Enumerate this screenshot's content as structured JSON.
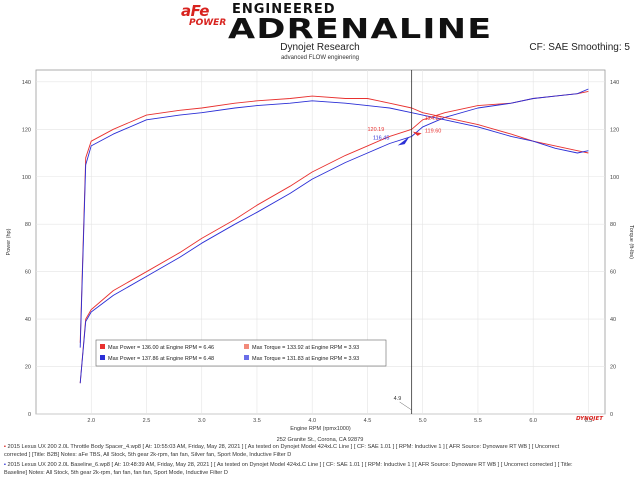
{
  "header": {
    "brand_afe": "aFe",
    "brand_power": "POWER",
    "brand_engineered": "ENGINEERED",
    "brand_adrenaline": "ADRENALINE",
    "title": "Dynojet Research",
    "subtitle": "advanced FLOW engineering",
    "correction": "CF: SAE Smoothing: 5"
  },
  "chart_data": {
    "type": "line",
    "xlabel": "Engine RPM (rpmx1000)",
    "ylabel_left": "Power (hp)",
    "ylabel_right": "Torque (ft-lbs)",
    "xlim": [
      1.5,
      6.65
    ],
    "ylim": [
      0,
      145
    ],
    "x_ticks": [
      "2.0",
      "2.5",
      "3.0",
      "3.5",
      "4.0",
      "4.5",
      "5.0",
      "5.5",
      "6.0",
      "6.5"
    ],
    "y_ticks": [
      "0",
      "20",
      "40",
      "60",
      "80",
      "100",
      "120",
      "140"
    ],
    "cursor_rpm": 4.9,
    "cursor_label": "4.9",
    "series": [
      {
        "name": "afe",
        "kind": "power",
        "color": "#e8312f",
        "x": [
          1.9,
          1.95,
          2.0,
          2.2,
          2.5,
          2.8,
          3.0,
          3.3,
          3.5,
          3.8,
          4.0,
          4.3,
          4.5,
          4.7,
          4.9,
          5.0,
          5.2,
          5.5,
          5.8,
          6.0,
          6.2,
          6.4,
          6.5
        ],
        "y": [
          13,
          40,
          44,
          52,
          60,
          68,
          74,
          82,
          88,
          96,
          102,
          109,
          113,
          117,
          120,
          124,
          127,
          130,
          131,
          133,
          134,
          135,
          136
        ]
      },
      {
        "name": "baseline",
        "kind": "power",
        "color": "#2b2fd6",
        "x": [
          1.9,
          1.95,
          2.0,
          2.2,
          2.5,
          2.8,
          3.0,
          3.3,
          3.5,
          3.8,
          4.0,
          4.3,
          4.5,
          4.7,
          4.9,
          5.0,
          5.2,
          5.5,
          5.8,
          6.0,
          6.2,
          6.4,
          6.5
        ],
        "y": [
          13,
          39,
          43,
          50,
          58,
          66,
          72,
          80,
          85,
          93,
          99,
          106,
          110,
          114,
          117,
          121,
          125,
          129,
          131,
          133,
          134,
          135,
          137
        ]
      },
      {
        "name": "afe",
        "kind": "torque",
        "color": "#e8312f",
        "x": [
          1.9,
          1.95,
          2.0,
          2.2,
          2.5,
          2.8,
          3.0,
          3.3,
          3.5,
          3.8,
          4.0,
          4.3,
          4.5,
          4.7,
          4.9,
          5.0,
          5.2,
          5.5,
          5.8,
          6.0,
          6.2,
          6.4,
          6.5
        ],
        "y": [
          30,
          108,
          115,
          120,
          126,
          128,
          129,
          131,
          132,
          133,
          134,
          133,
          133,
          131,
          129,
          127,
          125,
          122,
          118,
          115,
          113,
          111,
          110
        ]
      },
      {
        "name": "baseline",
        "kind": "torque",
        "color": "#2b2fd6",
        "x": [
          1.9,
          1.95,
          2.0,
          2.2,
          2.5,
          2.8,
          3.0,
          3.3,
          3.5,
          3.8,
          4.0,
          4.3,
          4.5,
          4.7,
          4.9,
          5.0,
          5.2,
          5.5,
          5.8,
          6.0,
          6.2,
          6.4,
          6.5
        ],
        "y": [
          28,
          105,
          113,
          118,
          124,
          126,
          127,
          129,
          130,
          131,
          132,
          131,
          130,
          129,
          127,
          126,
          124,
          121,
          117,
          115,
          112,
          110,
          111
        ]
      }
    ],
    "cursor_labels": [
      {
        "text": "120.19",
        "color": "#e8312f",
        "x": 4.5,
        "y": 120.19
      },
      {
        "text": "124.82",
        "color": "#e8312f",
        "x": 5.02,
        "y": 124.82
      },
      {
        "text": "116.45",
        "color": "#2b2fd6",
        "x": 4.55,
        "y": 116.45
      },
      {
        "text": "119.60",
        "color": "#e8312f",
        "x": 5.02,
        "y": 119.6
      }
    ],
    "legend": {
      "placement": "bottom-left",
      "rows": [
        {
          "color": "#e8312f",
          "power": "Max Power = 136.00 at Engine RPM = 6.46",
          "torque_color": "#f28a7a",
          "torque": "Max Torque = 133.92 at Engine RPM = 3.93"
        },
        {
          "color": "#2b2fd6",
          "power": "Max Power = 137.86 at Engine RPM = 6.48",
          "torque_color": "#6a6ee8",
          "torque": "Max Torque = 131.83 at Engine RPM = 3.93"
        }
      ]
    }
  },
  "brand_mark": "DYNOJET",
  "footer": {
    "address": "252 Granite St., Corona, CA 92879",
    "line1": "2015 Lexus UX 200 2.0L Throttle Body Spacer_4.wp8 [ At: 10:55:03 AM, Friday, May 28, 2021 ] [ As tested on Dynojet Model 424xLC Line ] [ CF: SAE 1.01 ] [ RPM: Inductive 1 ] [ AFR Source: Dynoware RT WB ] [ Uncorrect",
    "line2": "corrected ] [Title: B2B] Notes: aFe TBS, All Stock, 5th gear 2k-rpm, fan fan, Silver fan, Sport Mode, Inductive Filter D",
    "line3": "2015 Lexus UX 200 2.0L Baseline_6.wp8 [ At: 10:48:39 AM, Friday, May 28, 2021 ] [ As tested on Dynojet Model 424xLC Line ] [ CF: SAE 1.01 ] [ RPM: Inductive 1 ] [ AFR Source: Dynoware RT WB ] [ Uncorrect corrected ] [ Title:",
    "line4": "Baseline] Notes: All Stock, 5th gear 2k-rpm, fan fan, fan fan, Sport Mode, Inductive Filter D"
  }
}
